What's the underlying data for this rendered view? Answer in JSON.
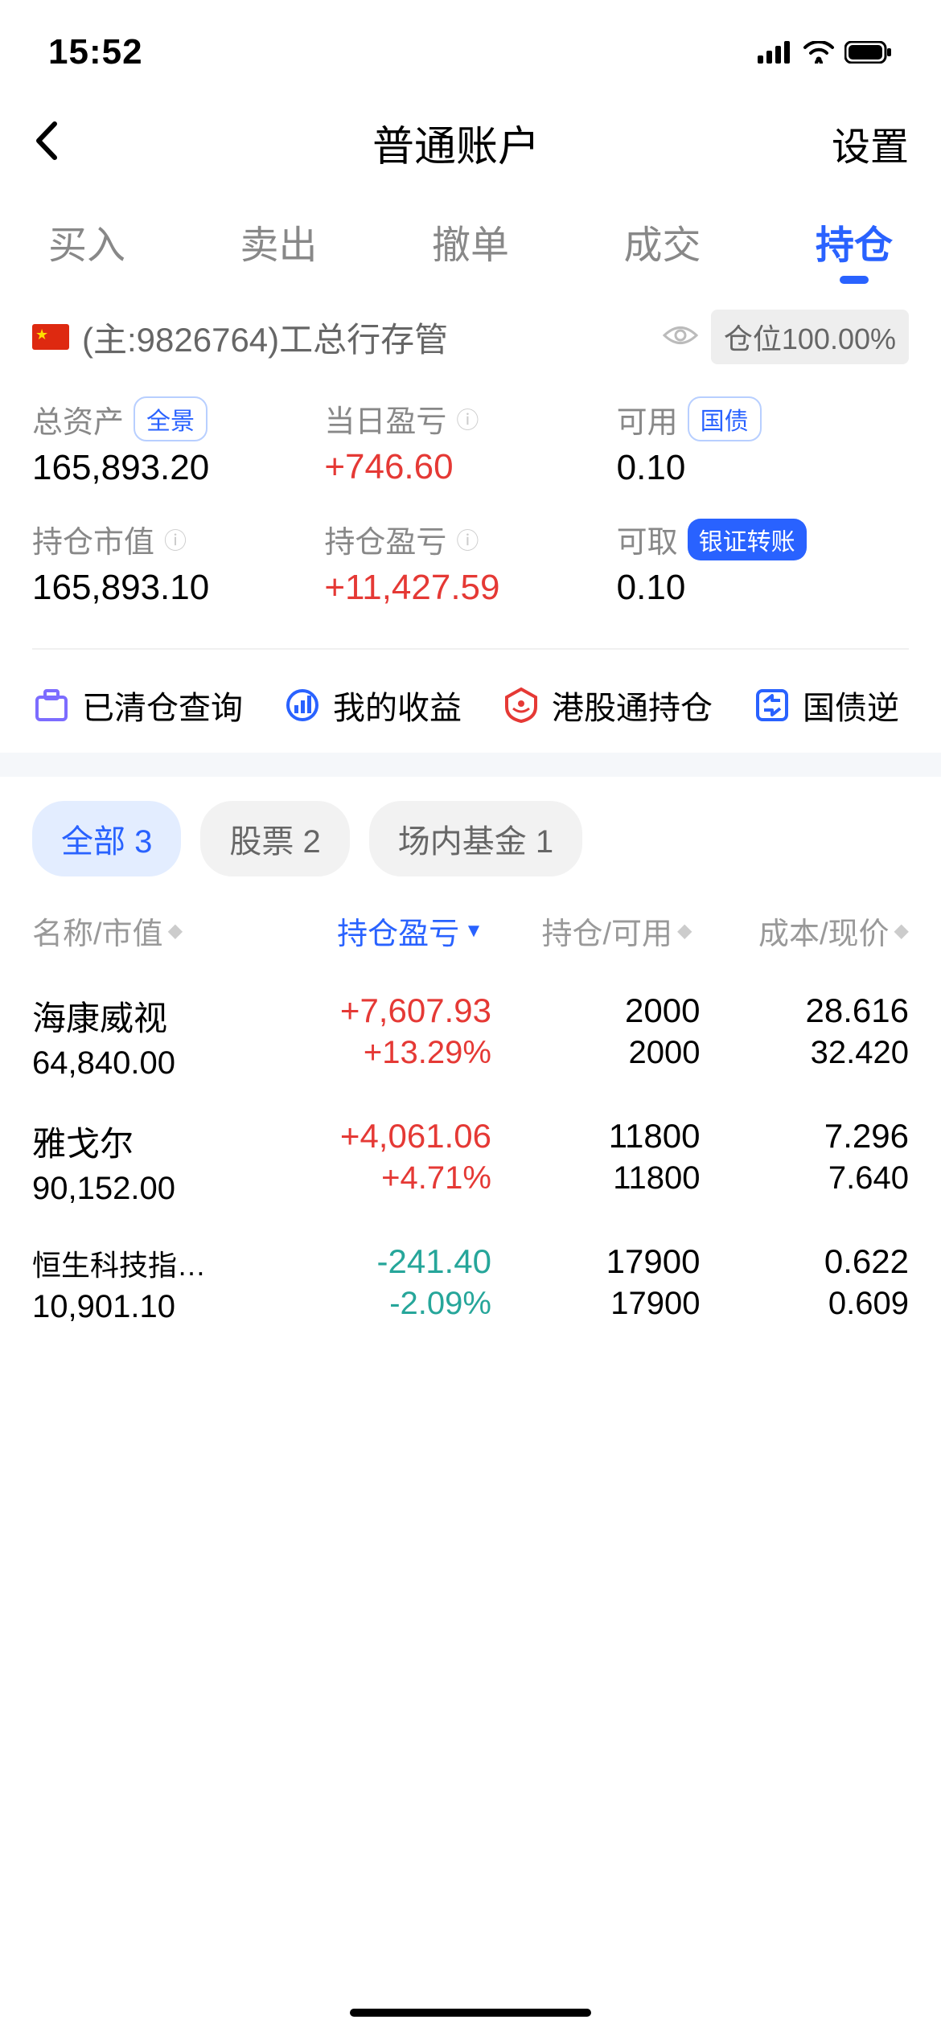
{
  "status": {
    "time": "15:52"
  },
  "header": {
    "title": "普通账户",
    "settings": "设置"
  },
  "tabs": [
    "买入",
    "卖出",
    "撤单",
    "成交",
    "持仓"
  ],
  "tabs_active_index": 4,
  "account": {
    "text": "(主:9826764)工总行存管",
    "position_badge": "仓位100.00%"
  },
  "stats": {
    "total_assets": {
      "label": "总资产",
      "badge": "全景",
      "value": "165,893.20"
    },
    "today_pl": {
      "label": "当日盈亏",
      "value": "+746.60",
      "color": "red"
    },
    "available": {
      "label": "可用",
      "badge": "国债",
      "value": "0.10"
    },
    "holding_mv": {
      "label": "持仓市值",
      "value": "165,893.10"
    },
    "holding_pl": {
      "label": "持仓盈亏",
      "value": "+11,427.59",
      "color": "red"
    },
    "withdrawable": {
      "label": "可取",
      "badge": "银证转账",
      "badge_filled": true,
      "value": "0.10"
    }
  },
  "actions": [
    "已清仓查询",
    "我的收益",
    "港股通持仓",
    "国债逆"
  ],
  "filters": [
    {
      "label": "全部 3",
      "active": true
    },
    {
      "label": "股票 2",
      "active": false
    },
    {
      "label": "场内基金 1",
      "active": false
    }
  ],
  "columns": [
    "名称/市值",
    "持仓盈亏",
    "持仓/可用",
    "成本/现价"
  ],
  "columns_active_index": 1,
  "holdings": [
    {
      "name": "海康威视",
      "market": "64,840.00",
      "pl": "+7,607.93",
      "pl_pct": "+13.29%",
      "qty": "2000",
      "avail": "2000",
      "cost": "28.616",
      "price": "32.420",
      "color": "red"
    },
    {
      "name": "雅戈尔",
      "market": "90,152.00",
      "pl": "+4,061.06",
      "pl_pct": "+4.71%",
      "qty": "11800",
      "avail": "11800",
      "cost": "7.296",
      "price": "7.640",
      "color": "red"
    },
    {
      "name": "恒生科技指…",
      "small": true,
      "market": "10,901.10",
      "pl": "-241.40",
      "pl_pct": "-2.09%",
      "qty": "17900",
      "avail": "17900",
      "cost": "0.622",
      "price": "0.609",
      "color": "green"
    }
  ],
  "colors": {
    "red": "#e53935",
    "green": "#26a69a",
    "blue": "#2962ff"
  }
}
